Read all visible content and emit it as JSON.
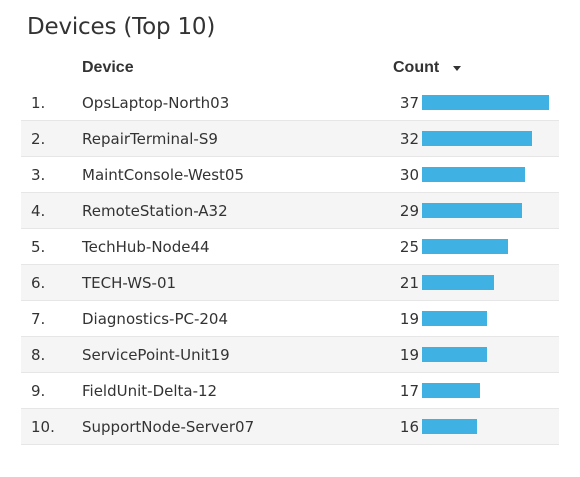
{
  "widget": {
    "title": "Devices (Top 10)",
    "columns": {
      "device": "Device",
      "count": "Count"
    },
    "sort_icon": "caret-down-icon",
    "bar_color": "#3fb1e3",
    "rows": [
      {
        "rank": "1.",
        "device": "OpsLaptop-North03",
        "count": 37
      },
      {
        "rank": "2.",
        "device": "RepairTerminal-S9",
        "count": 32
      },
      {
        "rank": "3.",
        "device": "MaintConsole-West05",
        "count": 30
      },
      {
        "rank": "4.",
        "device": "RemoteStation-A32",
        "count": 29
      },
      {
        "rank": "5.",
        "device": "TechHub-Node44",
        "count": 25
      },
      {
        "rank": "6.",
        "device": "TECH-WS-01",
        "count": 21
      },
      {
        "rank": "7.",
        "device": "Diagnostics-PC-204",
        "count": 19
      },
      {
        "rank": "8.",
        "device": "ServicePoint-Unit19",
        "count": 19
      },
      {
        "rank": "9.",
        "device": "FieldUnit-Delta-12",
        "count": 17
      },
      {
        "rank": "10.",
        "device": "SupportNode-Server07",
        "count": 16
      }
    ]
  }
}
